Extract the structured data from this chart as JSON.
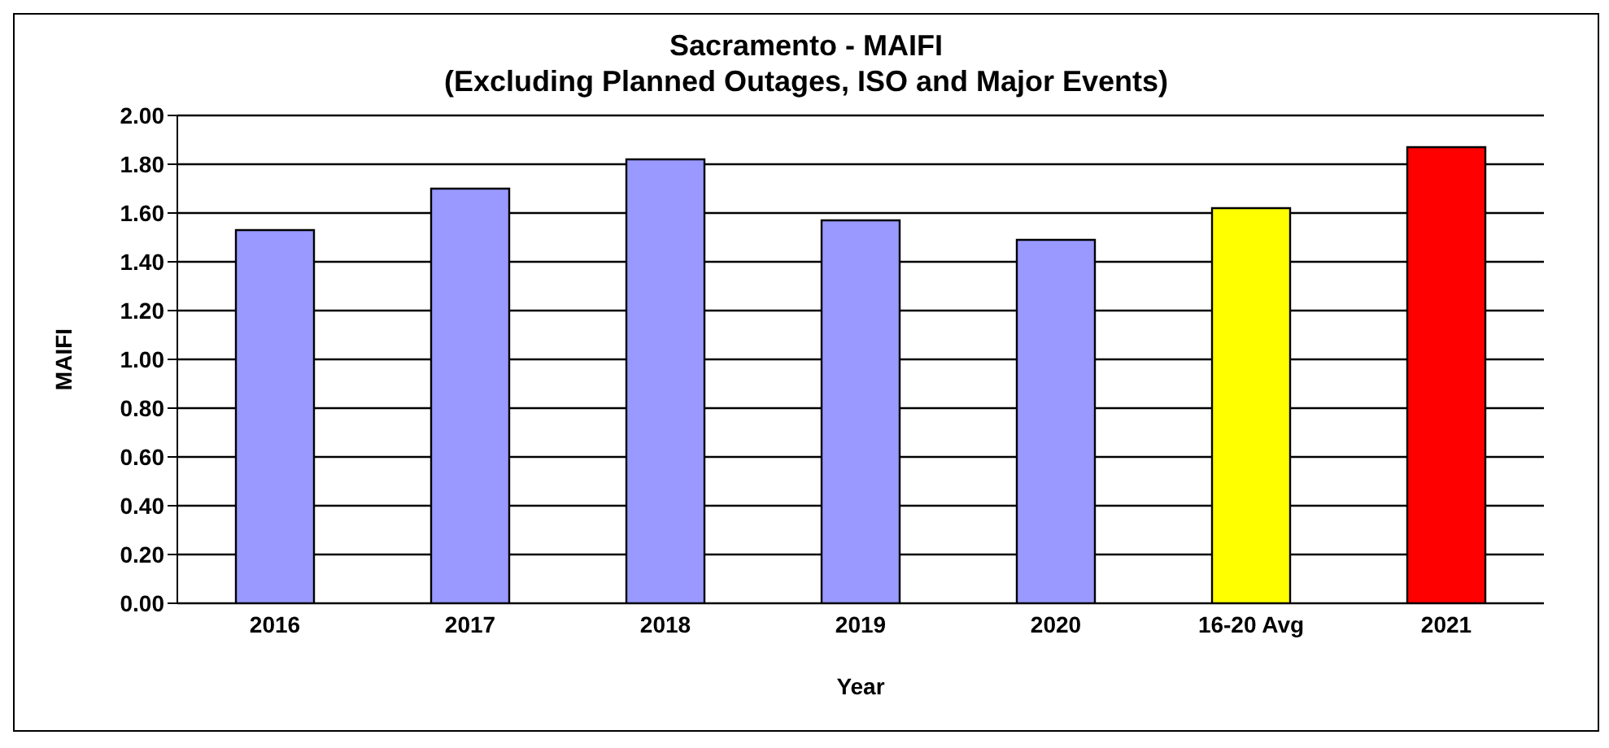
{
  "chart_data": {
    "type": "bar",
    "title": "Sacramento - MAIFI",
    "subtitle": "(Excluding Planned Outages, ISO and Major Events)",
    "xlabel": "Year",
    "ylabel": "MAIFI",
    "categories": [
      "2016",
      "2017",
      "2018",
      "2019",
      "2020",
      "16-20 Avg",
      "2021"
    ],
    "values": [
      1.53,
      1.7,
      1.82,
      1.57,
      1.49,
      1.62,
      1.87
    ],
    "colors": [
      "#9999ff",
      "#9999ff",
      "#9999ff",
      "#9999ff",
      "#9999ff",
      "#ffff00",
      "#ff0000"
    ],
    "ylim": [
      0,
      2
    ],
    "yticks": [
      {
        "value": 0,
        "label": "0.00"
      },
      {
        "value": 0.2,
        "label": "0.20"
      },
      {
        "value": 0.4,
        "label": "0.40"
      },
      {
        "value": 0.6,
        "label": "0.60"
      },
      {
        "value": 0.8,
        "label": "0.80"
      },
      {
        "value": 1,
        "label": "1.00"
      },
      {
        "value": 1.2,
        "label": "1.20"
      },
      {
        "value": 1.4,
        "label": "1.40"
      },
      {
        "value": 1.6,
        "label": "1.60"
      },
      {
        "value": 1.8,
        "label": "1.80"
      },
      {
        "value": 2,
        "label": "2.00"
      }
    ],
    "grid": "y"
  }
}
